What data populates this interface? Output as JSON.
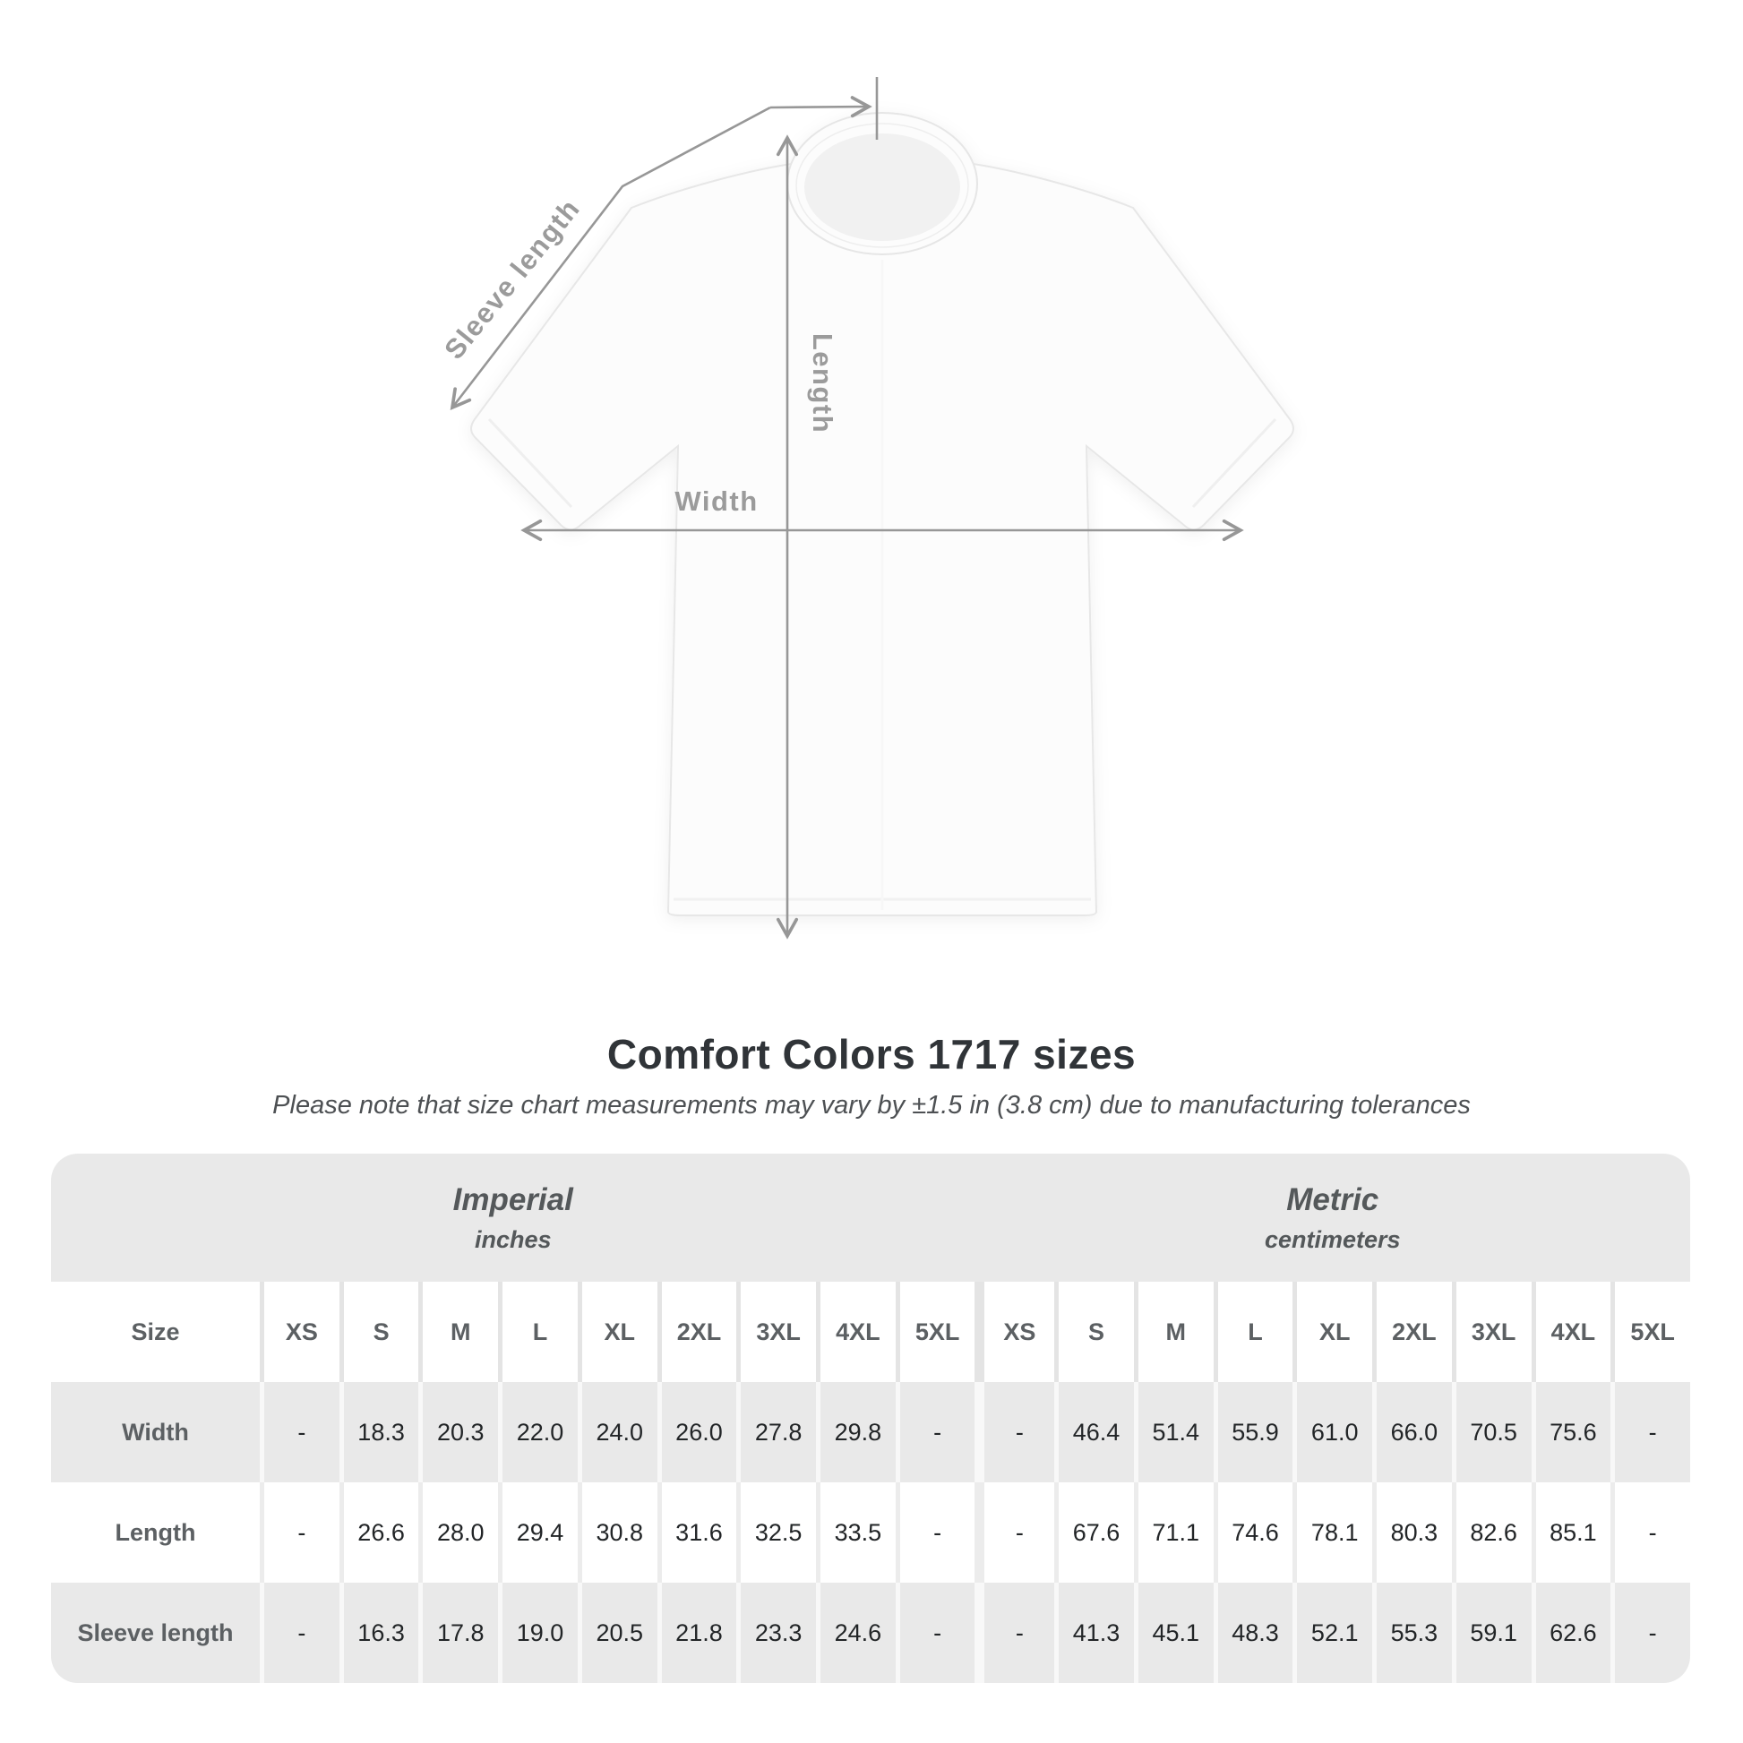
{
  "title": "Comfort Colors 1717 sizes",
  "subtitle": "Please note that size chart measurements may vary by ±1.5 in (3.8 cm) due to manufacturing tolerances",
  "diagram": {
    "sleeve_label": "Sleeve length",
    "length_label": "Length",
    "width_label": "Width",
    "line_color": "#979797",
    "label_color": "#9b9b9b"
  },
  "table": {
    "corner_header": "Size",
    "unit_groups": [
      {
        "name": "Imperial",
        "unit": "inches"
      },
      {
        "name": "Metric",
        "unit": "centimeters"
      }
    ],
    "sizes": [
      "XS",
      "S",
      "M",
      "L",
      "XL",
      "2XL",
      "3XL",
      "4XL",
      "5XL"
    ],
    "rows": [
      {
        "label": "Width",
        "imperial": [
          "-",
          "18.3",
          "20.3",
          "22.0",
          "24.0",
          "26.0",
          "27.8",
          "29.8",
          "-"
        ],
        "metric": [
          "-",
          "46.4",
          "51.4",
          "55.9",
          "61.0",
          "66.0",
          "70.5",
          "75.6",
          "-"
        ]
      },
      {
        "label": "Length",
        "imperial": [
          "-",
          "26.6",
          "28.0",
          "29.4",
          "30.8",
          "31.6",
          "32.5",
          "33.5",
          "-"
        ],
        "metric": [
          "-",
          "67.6",
          "71.1",
          "74.6",
          "78.1",
          "80.3",
          "82.6",
          "85.1",
          "-"
        ]
      },
      {
        "label": "Sleeve length",
        "imperial": [
          "-",
          "16.3",
          "17.8",
          "19.0",
          "20.5",
          "21.8",
          "23.3",
          "24.6",
          "-"
        ],
        "metric": [
          "-",
          "41.3",
          "45.1",
          "48.3",
          "52.1",
          "55.3",
          "59.1",
          "62.6",
          "-"
        ]
      }
    ],
    "colors": {
      "band": "#e9e9e9",
      "row_gray": "#e9e9e9",
      "row_white": "#ffffff"
    }
  },
  "chart_data": {
    "type": "table",
    "title": "Comfort Colors 1717 sizes",
    "note": "Measurements may vary by ±1.5 in (3.8 cm) due to manufacturing tolerances",
    "column_groups": [
      {
        "name": "Imperial",
        "unit": "inches"
      },
      {
        "name": "Metric",
        "unit": "centimeters"
      }
    ],
    "columns": [
      "XS",
      "S",
      "M",
      "L",
      "XL",
      "2XL",
      "3XL",
      "4XL",
      "5XL"
    ],
    "series": [
      {
        "name": "Width (in)",
        "values": [
          null,
          18.3,
          20.3,
          22.0,
          24.0,
          26.0,
          27.8,
          29.8,
          null
        ]
      },
      {
        "name": "Length (in)",
        "values": [
          null,
          26.6,
          28.0,
          29.4,
          30.8,
          31.6,
          32.5,
          33.5,
          null
        ]
      },
      {
        "name": "Sleeve length (in)",
        "values": [
          null,
          16.3,
          17.8,
          19.0,
          20.5,
          21.8,
          23.3,
          24.6,
          null
        ]
      },
      {
        "name": "Width (cm)",
        "values": [
          null,
          46.4,
          51.4,
          55.9,
          61.0,
          66.0,
          70.5,
          75.6,
          null
        ]
      },
      {
        "name": "Length (cm)",
        "values": [
          null,
          67.6,
          71.1,
          74.6,
          78.1,
          80.3,
          82.6,
          85.1,
          null
        ]
      },
      {
        "name": "Sleeve length (cm)",
        "values": [
          null,
          41.3,
          45.1,
          48.3,
          52.1,
          55.3,
          59.1,
          62.6,
          null
        ]
      }
    ]
  }
}
